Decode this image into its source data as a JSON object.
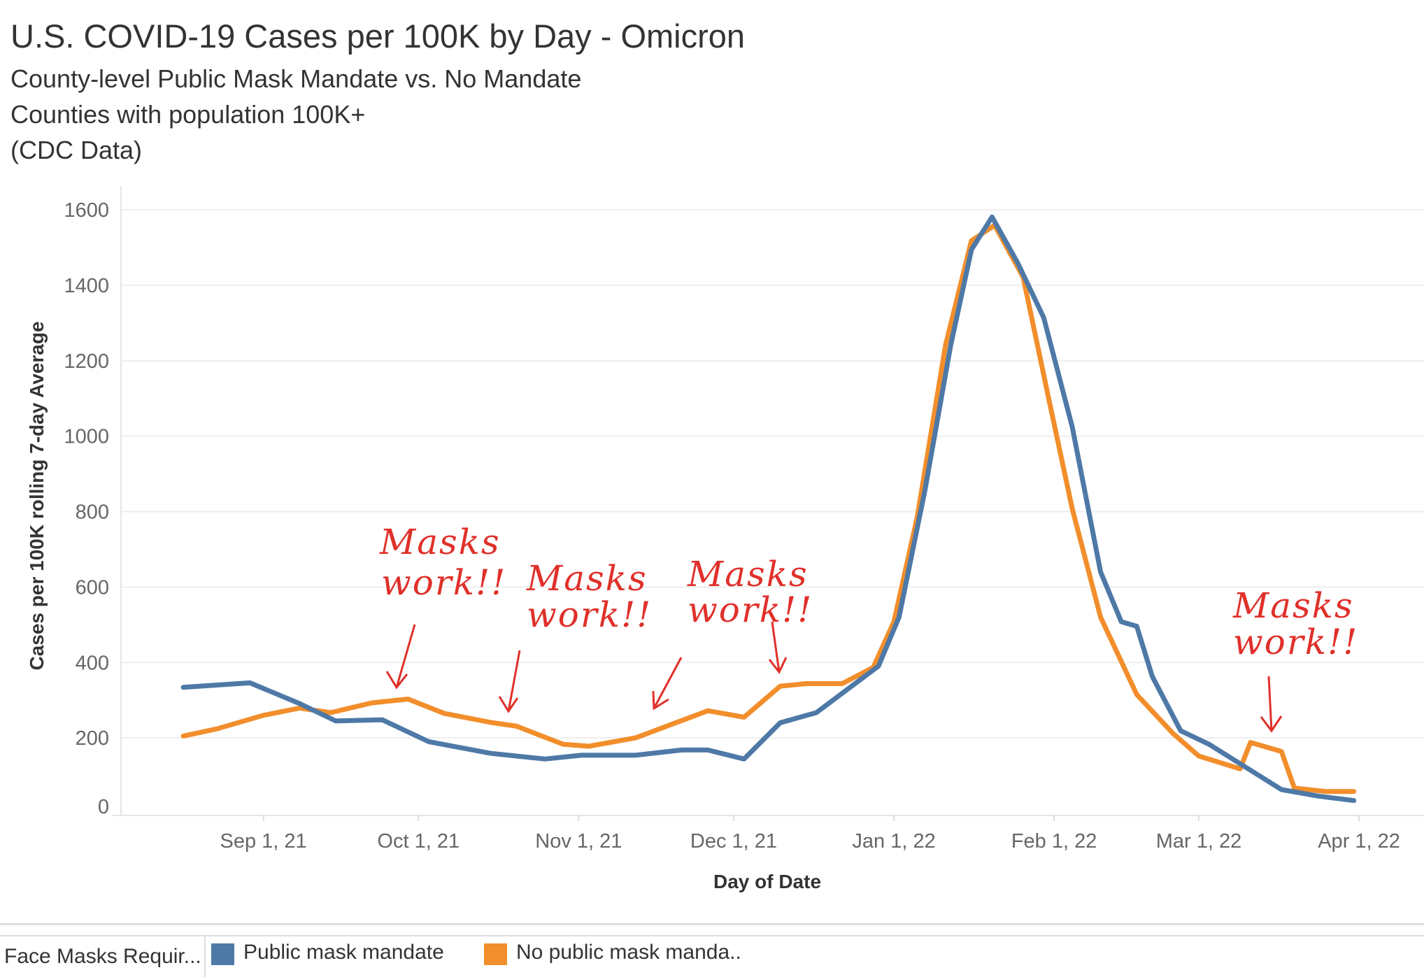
{
  "header": {
    "title": "U.S. COVID-19 Cases per 100K by Day - Omicron",
    "subtitles": [
      "County-level Public Mask Mandate vs. No Mandate",
      "Counties with population 100K+",
      "(CDC Data)"
    ]
  },
  "chart_data": {
    "type": "line",
    "title": "U.S. COVID-19 Cases per 100K by Day - Omicron",
    "xlabel": "Day of Date",
    "ylabel": "Cases per 100K rolling 7-day Average",
    "ylim": [
      0,
      1600
    ],
    "yticks": [
      0,
      200,
      400,
      600,
      800,
      1000,
      1200,
      1400,
      1600
    ],
    "x_unit": "days since Sep 1, 21",
    "xticks": [
      {
        "day": 0,
        "label": "Sep 1, 21"
      },
      {
        "day": 30,
        "label": "Oct 1, 21"
      },
      {
        "day": 61,
        "label": "Nov 1, 21"
      },
      {
        "day": 91,
        "label": "Dec 1, 21"
      },
      {
        "day": 122,
        "label": "Jan 1, 22"
      },
      {
        "day": 153,
        "label": "Feb 1, 22"
      },
      {
        "day": 181,
        "label": "Mar 1, 22"
      },
      {
        "day": 212,
        "label": "Apr 1, 22"
      }
    ],
    "grid": true,
    "legend_position": "bottom",
    "series": [
      {
        "name": "Public mask mandate",
        "color": "#4e79a7",
        "points": [
          [
            -15.5,
            334
          ],
          [
            -2.6,
            346
          ],
          [
            7,
            291
          ],
          [
            14,
            245
          ],
          [
            23,
            248
          ],
          [
            32,
            190
          ],
          [
            44,
            159
          ],
          [
            54.5,
            144
          ],
          [
            61.5,
            154
          ],
          [
            72,
            154
          ],
          [
            81,
            168
          ],
          [
            86,
            168
          ],
          [
            93,
            144
          ],
          [
            100,
            240
          ],
          [
            107,
            267
          ],
          [
            114,
            339
          ],
          [
            119,
            390
          ],
          [
            123,
            520
          ],
          [
            128,
            856
          ],
          [
            133,
            1241
          ],
          [
            137,
            1494
          ],
          [
            141,
            1581
          ],
          [
            146,
            1458
          ],
          [
            151,
            1314
          ],
          [
            156.5,
            1025
          ],
          [
            162,
            640
          ],
          [
            166,
            508
          ],
          [
            169,
            496
          ],
          [
            172,
            363
          ],
          [
            177.5,
            219
          ],
          [
            183,
            183
          ],
          [
            190,
            123
          ],
          [
            197,
            63
          ],
          [
            204,
            46
          ],
          [
            211,
            34
          ]
        ]
      },
      {
        "name": "No public mask manda..",
        "color": "#f28e2b",
        "points": [
          [
            -15.5,
            205
          ],
          [
            -9,
            224
          ],
          [
            0,
            260
          ],
          [
            7,
            279
          ],
          [
            13,
            267
          ],
          [
            21,
            293
          ],
          [
            28,
            303
          ],
          [
            35,
            265
          ],
          [
            44,
            241
          ],
          [
            49,
            231
          ],
          [
            58,
            183
          ],
          [
            63,
            178
          ],
          [
            72,
            200
          ],
          [
            79,
            236
          ],
          [
            86,
            272
          ],
          [
            93,
            255
          ],
          [
            100,
            337
          ],
          [
            105,
            344
          ],
          [
            112,
            344
          ],
          [
            118,
            387
          ],
          [
            122,
            508
          ],
          [
            126.5,
            784
          ],
          [
            132,
            1241
          ],
          [
            137,
            1518
          ],
          [
            141.5,
            1559
          ],
          [
            147,
            1422
          ],
          [
            152,
            1097
          ],
          [
            156.5,
            808
          ],
          [
            162,
            520
          ],
          [
            169,
            315
          ],
          [
            176,
            212
          ],
          [
            181,
            152
          ],
          [
            189,
            118
          ],
          [
            191,
            188
          ],
          [
            197,
            164
          ],
          [
            199.5,
            67
          ],
          [
            205.5,
            58
          ],
          [
            211,
            58
          ]
        ]
      }
    ],
    "annotations": [
      {
        "line1": "Masks",
        "line2": "work!!"
      },
      {
        "line1": "Masks",
        "line2": "work!!"
      },
      {
        "line1": "Masks",
        "line2": "work!!"
      },
      {
        "line1": "Masks",
        "line2": "work!!"
      }
    ]
  },
  "legend": {
    "field_label": "Face Masks Requir...",
    "items": [
      {
        "label": "Public mask mandate",
        "color": "#4e79a7"
      },
      {
        "label": "No public mask manda..",
        "color": "#f28e2b"
      }
    ]
  }
}
